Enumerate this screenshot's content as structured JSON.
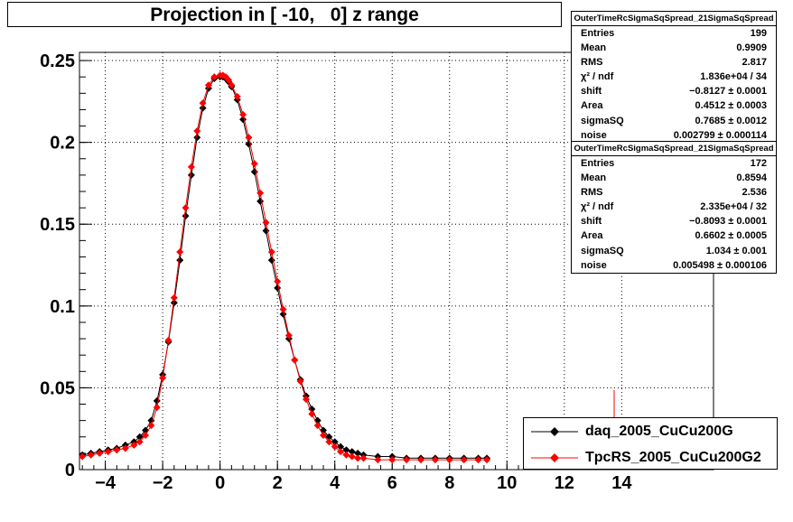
{
  "title": "Projection in [ -10,   0] z range",
  "colors": {
    "series1": "#000000",
    "series2": "#ff0000",
    "grid": "#000000"
  },
  "stats": [
    {
      "title": "OuterTimeRcSigmaSqSpread_21SigmaSqSpread",
      "rows": [
        {
          "label": "Entries",
          "value": "199"
        },
        {
          "label": "Mean",
          "value": "0.9909"
        },
        {
          "label": "RMS",
          "value": "2.817"
        },
        {
          "label": "χ² / ndf",
          "value": "1.836e+04 / 34"
        },
        {
          "label": "shift",
          "value": "−0.8127 ± 0.0001"
        },
        {
          "label": "Area",
          "value": "0.4512 ± 0.0003"
        },
        {
          "label": "sigmaSQ",
          "value": "0.7685 ± 0.0012"
        },
        {
          "label": "noise",
          "value": "0.002799 ± 0.000114"
        }
      ]
    },
    {
      "title": "OuterTimeRcSigmaSqSpread_21SigmaSqSpread",
      "rows": [
        {
          "label": "Entries",
          "value": "172"
        },
        {
          "label": "Mean",
          "value": "0.8594"
        },
        {
          "label": "RMS",
          "value": "2.536"
        },
        {
          "label": "χ² / ndf",
          "value": "2.335e+04 / 32"
        },
        {
          "label": "shift",
          "value": "−0.8093 ± 0.0001"
        },
        {
          "label": "Area",
          "value": "0.6602 ± 0.0005"
        },
        {
          "label": "sigmaSQ",
          "value": "1.034 ± 0.001"
        },
        {
          "label": "noise",
          "value": "0.005498 ± 0.000106"
        }
      ]
    }
  ],
  "legend": [
    {
      "label": "daq_2005_CuCu200G",
      "color": "#000000"
    },
    {
      "label": "TpcRS_2005_CuCu200G2",
      "color": "#ff0000"
    }
  ],
  "chart_data": {
    "type": "scatter",
    "title": "Projection in [ -10,   0] z range",
    "xlim": [
      -4.9,
      17.2
    ],
    "ylim": [
      0,
      0.255
    ],
    "grid": true,
    "legend_position": "bottom-right",
    "x_ticks": [
      -4,
      -2,
      0,
      2,
      4,
      6,
      8,
      10,
      12,
      14
    ],
    "x_tick_labels": [
      "−4",
      "−2",
      "0",
      "2",
      "4",
      "6",
      "8",
      "10",
      "12",
      "14"
    ],
    "y_ticks": [
      0,
      0.05,
      0.1,
      0.15,
      0.2,
      0.25
    ],
    "y_tick_labels": [
      "0",
      "0.05",
      "0.1",
      "0.15",
      "0.2",
      "0.25"
    ],
    "series": [
      {
        "name": "daq_2005_CuCu200G",
        "color": "#000000",
        "x": [
          -4.8,
          -4.5,
          -4.2,
          -3.9,
          -3.6,
          -3.3,
          -3.0,
          -2.8,
          -2.6,
          -2.4,
          -2.2,
          -2.0,
          -1.8,
          -1.6,
          -1.4,
          -1.2,
          -1.0,
          -0.8,
          -0.6,
          -0.4,
          -0.2,
          0.0,
          0.1,
          0.2,
          0.3,
          0.4,
          0.6,
          0.8,
          1.0,
          1.2,
          1.4,
          1.6,
          1.8,
          2.0,
          2.2,
          2.4,
          2.6,
          2.8,
          3.0,
          3.2,
          3.4,
          3.6,
          3.8,
          4.0,
          4.2,
          4.4,
          4.6,
          4.8,
          5.0,
          5.5,
          6.0,
          6.5,
          7.0,
          7.5,
          8.0,
          8.5,
          9.0,
          9.3
        ],
        "y": [
          0.009,
          0.01,
          0.011,
          0.012,
          0.013,
          0.015,
          0.017,
          0.02,
          0.024,
          0.03,
          0.042,
          0.058,
          0.078,
          0.102,
          0.128,
          0.155,
          0.18,
          0.203,
          0.221,
          0.233,
          0.239,
          0.24,
          0.24,
          0.239,
          0.237,
          0.234,
          0.226,
          0.214,
          0.199,
          0.182,
          0.164,
          0.146,
          0.128,
          0.111,
          0.095,
          0.08,
          0.067,
          0.055,
          0.045,
          0.037,
          0.03,
          0.024,
          0.02,
          0.017,
          0.014,
          0.012,
          0.011,
          0.01,
          0.009,
          0.008,
          0.008,
          0.007,
          0.007,
          0.007,
          0.007,
          0.007,
          0.007,
          0.007
        ]
      },
      {
        "name": "TpcRS_2005_CuCu200G2",
        "color": "#ff0000",
        "x": [
          -4.8,
          -4.5,
          -4.2,
          -3.9,
          -3.6,
          -3.3,
          -3.0,
          -2.8,
          -2.6,
          -2.4,
          -2.2,
          -2.0,
          -1.8,
          -1.6,
          -1.4,
          -1.2,
          -1.0,
          -0.8,
          -0.6,
          -0.4,
          -0.2,
          0.0,
          0.1,
          0.2,
          0.3,
          0.4,
          0.6,
          0.8,
          1.0,
          1.2,
          1.4,
          1.6,
          1.8,
          2.0,
          2.2,
          2.4,
          2.6,
          2.8,
          3.0,
          3.2,
          3.4,
          3.6,
          3.8,
          4.0,
          4.2,
          4.4,
          4.6,
          4.8,
          5.0,
          5.5,
          6.0,
          6.5,
          7.0,
          7.5,
          8.0,
          8.5,
          9.0,
          9.3
        ],
        "y": [
          0.008,
          0.009,
          0.01,
          0.011,
          0.012,
          0.013,
          0.015,
          0.017,
          0.021,
          0.027,
          0.038,
          0.056,
          0.079,
          0.105,
          0.133,
          0.16,
          0.185,
          0.207,
          0.224,
          0.235,
          0.24,
          0.241,
          0.241,
          0.24,
          0.238,
          0.235,
          0.228,
          0.217,
          0.203,
          0.187,
          0.169,
          0.151,
          0.133,
          0.115,
          0.098,
          0.082,
          0.067,
          0.054,
          0.043,
          0.034,
          0.027,
          0.021,
          0.017,
          0.014,
          0.011,
          0.009,
          0.008,
          0.007,
          0.007,
          0.006,
          0.006,
          0.006,
          0.006,
          0.006,
          0.006,
          0.006,
          0.006,
          0.006
        ]
      }
    ]
  }
}
